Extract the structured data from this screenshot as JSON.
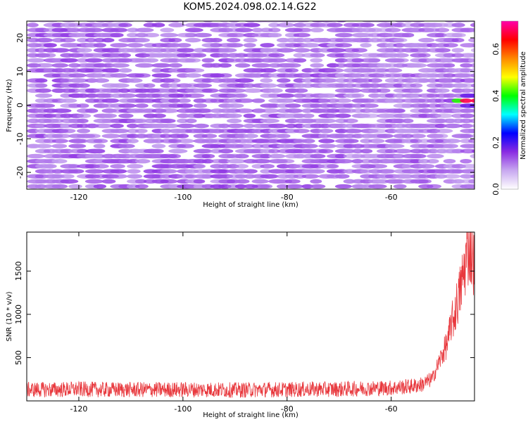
{
  "title": "KOM5.2024.098.02.14.G22",
  "chart_data": [
    {
      "type": "heatmap",
      "xlabel": "Height of straight line (km)",
      "ylabel": "Frequency (Hz)",
      "xlim": [
        -130,
        -44
      ],
      "ylim": [
        -25,
        25
      ],
      "xticks": [
        -120,
        -100,
        -80,
        -60
      ],
      "yticks": [
        -20,
        -10,
        0,
        10,
        20
      ],
      "xtick_labels": [
        "-120",
        "-100",
        "-80",
        "-60"
      ],
      "ytick_labels": [
        "-20",
        "-10",
        "0",
        "10",
        "20"
      ],
      "colorbar": {
        "label": "Normalized spectral amplitude",
        "range": [
          0.0,
          0.72
        ],
        "ticks": [
          0.0,
          0.2,
          0.4,
          0.6
        ],
        "tick_labels": [
          "0.0",
          "0.2",
          "0.4",
          "0.6"
        ],
        "colormap": [
          "#ffffff",
          "#c8a8f0",
          "#8a2be2",
          "#0000ff",
          "#00ffff",
          "#00ff00",
          "#ffff00",
          "#ff8800",
          "#ff0000",
          "#ff00aa"
        ]
      },
      "peak": {
        "x": -46,
        "y": 0.5,
        "amplitude": 0.72
      },
      "background_amplitude": 0.08,
      "cell_x_step": 1.6,
      "cell_y_step": 1.5
    },
    {
      "type": "line",
      "xlabel": "Height of straight line (km)",
      "ylabel": "SNR (10 * v/v)",
      "xlim": [
        -130,
        -44
      ],
      "ylim": [
        0,
        1950
      ],
      "xticks": [
        -120,
        -100,
        -80,
        -60
      ],
      "yticks": [
        500,
        1000,
        1500
      ],
      "xtick_labels": [
        "-120",
        "-100",
        "-80",
        "-60"
      ],
      "ytick_labels": [
        "500",
        "1000",
        "1500"
      ],
      "color": "#e8383d",
      "series": [
        {
          "x": [
            -130,
            -125,
            -120,
            -115,
            -110,
            -105,
            -100,
            -95,
            -90,
            -85,
            -80,
            -75,
            -70,
            -65,
            -60,
            -56,
            -54,
            -52,
            -51,
            -50,
            -49,
            -48.5,
            -48,
            -47.5,
            -47,
            -46.5,
            -46,
            -45.5,
            -45,
            -44.5,
            -44
          ],
          "values": [
            130,
            130,
            135,
            130,
            130,
            130,
            130,
            130,
            125,
            130,
            130,
            135,
            135,
            145,
            150,
            170,
            190,
            260,
            420,
            560,
            700,
            900,
            950,
            1100,
            1200,
            1350,
            1500,
            1700,
            1800,
            1700,
            1600
          ],
          "noise_amplitude": 90
        }
      ]
    }
  ]
}
